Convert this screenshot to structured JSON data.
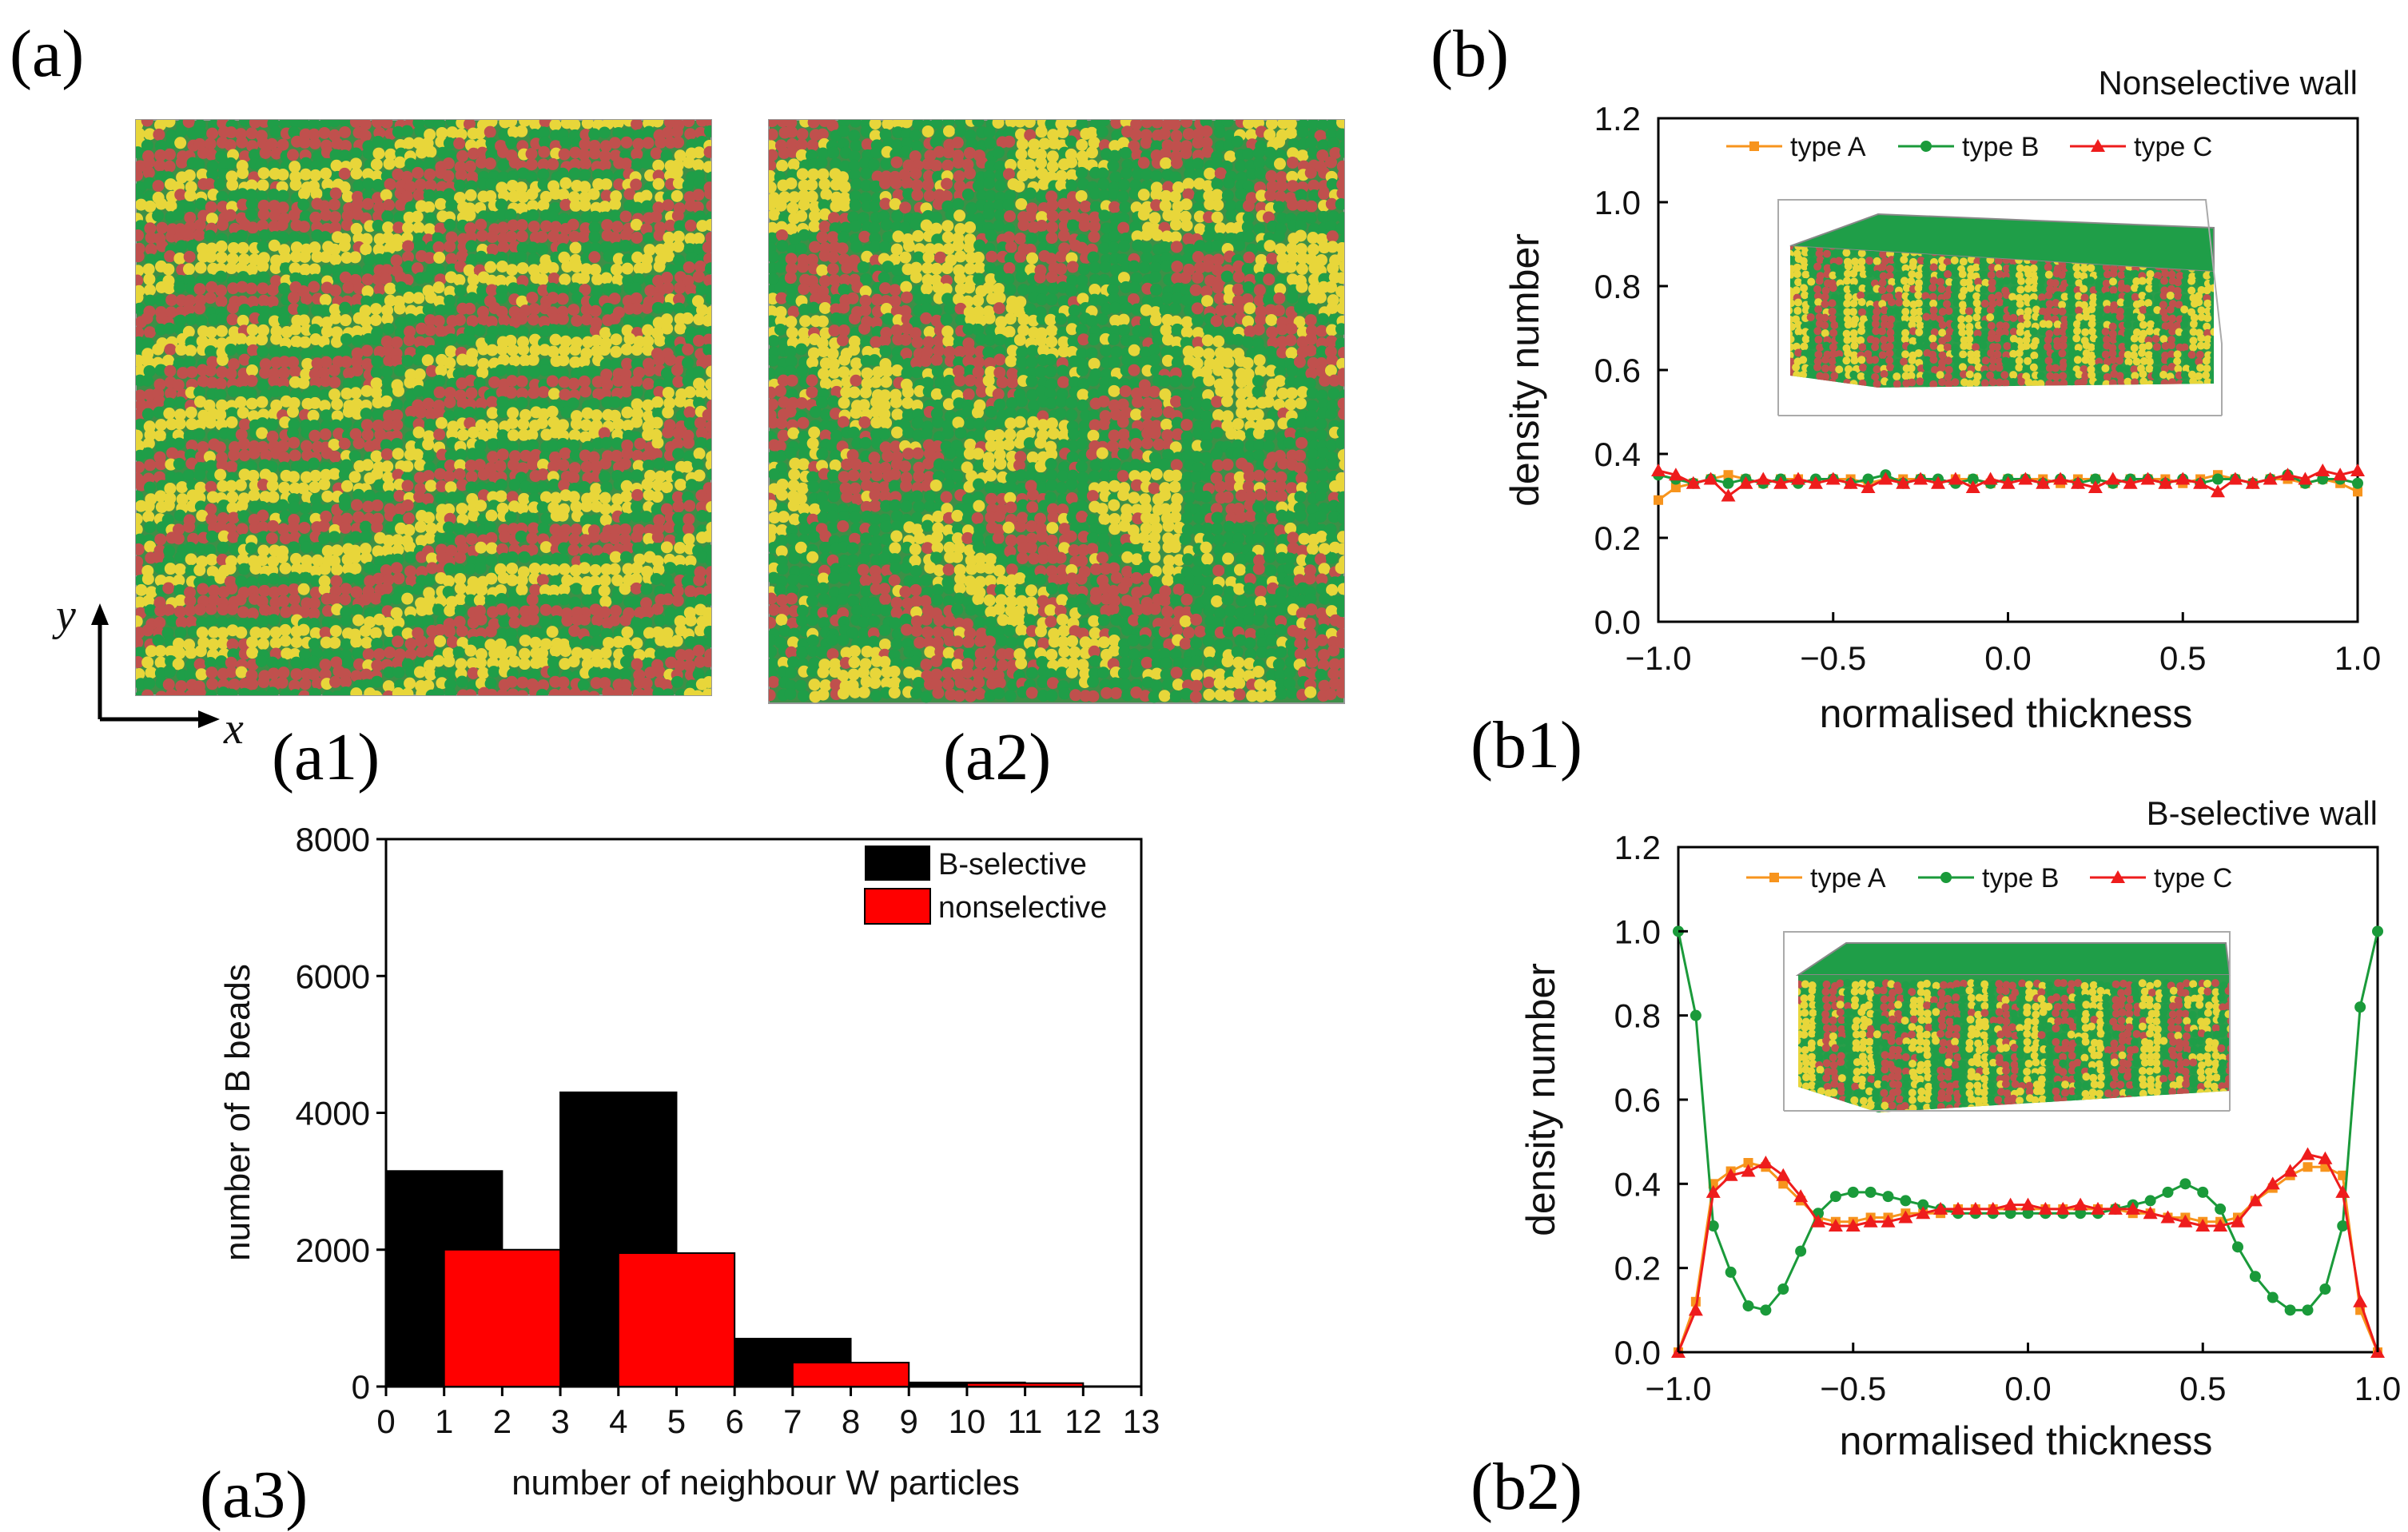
{
  "panel_labels": {
    "a": "(a)",
    "a1": "(a1)",
    "a2": "(a2)",
    "a3": "(a3)",
    "b": "(b)",
    "b1": "(b1)",
    "b2": "(b2)"
  },
  "axes_2d": {
    "y": "y",
    "x": "x"
  },
  "colors": {
    "typeA": "#f7941d",
    "typeB": "#1a9a3a",
    "typeC": "#ee1c1c",
    "bead_yellow": "#e8d63a",
    "bead_green": "#1f9e48",
    "bead_red": "#c0504d",
    "bar_bselective": "#000000",
    "bar_nonselective": "#ff0000"
  },
  "chart_data": [
    {
      "id": "a3",
      "type": "bar",
      "title": "",
      "xlabel": "number of neighbour W particles",
      "ylabel": "number of B beads",
      "xlim": [
        0,
        13
      ],
      "ylim": [
        0,
        8000
      ],
      "xticks": [
        "0",
        "1",
        "2",
        "3",
        "4",
        "5",
        "6",
        "7",
        "8",
        "9",
        "10",
        "11",
        "12",
        "13"
      ],
      "yticks": [
        "0",
        "2000",
        "4000",
        "6000",
        "8000"
      ],
      "legend_position": "top-right",
      "series": [
        {
          "name": "B-selective",
          "x": [
            1,
            4,
            7,
            10
          ],
          "values": [
            3150,
            4300,
            700,
            60
          ]
        },
        {
          "name": "nonselective",
          "x": [
            2,
            5,
            8,
            11
          ],
          "values": [
            2000,
            1950,
            350,
            50
          ]
        }
      ]
    },
    {
      "id": "b1",
      "type": "line",
      "title": "Nonselective wall",
      "xlabel": "normalised thickness",
      "ylabel": "density number",
      "xlim": [
        -1.0,
        1.0
      ],
      "ylim": [
        0.0,
        1.2
      ],
      "xticks": [
        "−1.0",
        "−0.5",
        "0.0",
        "0.5",
        "1.0"
      ],
      "yticks": [
        "0.0",
        "0.2",
        "0.4",
        "0.6",
        "0.8",
        "1.0",
        "1.2"
      ],
      "legend_position": "top",
      "series": [
        {
          "name": "type A",
          "x": [
            -1.0,
            -0.95,
            -0.9,
            -0.85,
            -0.8,
            -0.75,
            -0.7,
            -0.65,
            -0.6,
            -0.55,
            -0.5,
            -0.45,
            -0.4,
            -0.35,
            -0.3,
            -0.25,
            -0.2,
            -0.15,
            -0.1,
            -0.05,
            0.0,
            0.05,
            0.1,
            0.15,
            0.2,
            0.25,
            0.3,
            0.35,
            0.4,
            0.45,
            0.5,
            0.55,
            0.6,
            0.65,
            0.7,
            0.75,
            0.8,
            0.85,
            0.9,
            0.95,
            1.0
          ],
          "values": [
            0.29,
            0.32,
            0.33,
            0.34,
            0.35,
            0.34,
            0.33,
            0.34,
            0.34,
            0.33,
            0.34,
            0.34,
            0.33,
            0.34,
            0.34,
            0.34,
            0.33,
            0.34,
            0.34,
            0.33,
            0.34,
            0.34,
            0.34,
            0.33,
            0.34,
            0.34,
            0.33,
            0.34,
            0.34,
            0.34,
            0.33,
            0.34,
            0.35,
            0.34,
            0.33,
            0.34,
            0.34,
            0.33,
            0.34,
            0.33,
            0.31
          ]
        },
        {
          "name": "type B",
          "x": [
            -1.0,
            -0.95,
            -0.9,
            -0.85,
            -0.8,
            -0.75,
            -0.7,
            -0.65,
            -0.6,
            -0.55,
            -0.5,
            -0.45,
            -0.4,
            -0.35,
            -0.3,
            -0.25,
            -0.2,
            -0.15,
            -0.1,
            -0.05,
            0.0,
            0.05,
            0.1,
            0.15,
            0.2,
            0.25,
            0.3,
            0.35,
            0.4,
            0.45,
            0.5,
            0.55,
            0.6,
            0.65,
            0.7,
            0.75,
            0.8,
            0.85,
            0.9,
            0.95,
            1.0
          ],
          "values": [
            0.35,
            0.34,
            0.33,
            0.34,
            0.33,
            0.34,
            0.33,
            0.34,
            0.33,
            0.34,
            0.34,
            0.33,
            0.34,
            0.35,
            0.33,
            0.34,
            0.34,
            0.33,
            0.34,
            0.33,
            0.34,
            0.34,
            0.33,
            0.34,
            0.33,
            0.34,
            0.33,
            0.34,
            0.34,
            0.33,
            0.34,
            0.33,
            0.34,
            0.34,
            0.33,
            0.34,
            0.35,
            0.33,
            0.34,
            0.34,
            0.33
          ]
        },
        {
          "name": "type C",
          "x": [
            -1.0,
            -0.95,
            -0.9,
            -0.85,
            -0.8,
            -0.75,
            -0.7,
            -0.65,
            -0.6,
            -0.55,
            -0.5,
            -0.45,
            -0.4,
            -0.35,
            -0.3,
            -0.25,
            -0.2,
            -0.15,
            -0.1,
            -0.05,
            0.0,
            0.05,
            0.1,
            0.15,
            0.2,
            0.25,
            0.3,
            0.35,
            0.4,
            0.45,
            0.5,
            0.55,
            0.6,
            0.65,
            0.7,
            0.75,
            0.8,
            0.85,
            0.9,
            0.95,
            1.0
          ],
          "values": [
            0.36,
            0.35,
            0.33,
            0.34,
            0.3,
            0.33,
            0.34,
            0.33,
            0.34,
            0.33,
            0.34,
            0.33,
            0.32,
            0.34,
            0.33,
            0.34,
            0.33,
            0.34,
            0.32,
            0.34,
            0.33,
            0.34,
            0.33,
            0.34,
            0.33,
            0.32,
            0.34,
            0.33,
            0.34,
            0.33,
            0.34,
            0.33,
            0.31,
            0.34,
            0.33,
            0.34,
            0.35,
            0.34,
            0.36,
            0.35,
            0.36
          ]
        }
      ],
      "inset": "3D simulation box snapshot (lamellae)"
    },
    {
      "id": "b2",
      "type": "line",
      "title": "B-selective wall",
      "xlabel": "normalised thickness",
      "ylabel": "density number",
      "xlim": [
        -1.0,
        1.0
      ],
      "ylim": [
        0.0,
        1.2
      ],
      "xticks": [
        "−1.0",
        "−0.5",
        "0.0",
        "0.5",
        "1.0"
      ],
      "yticks": [
        "0.0",
        "0.2",
        "0.4",
        "0.6",
        "0.8",
        "1.0",
        "1.2"
      ],
      "legend_position": "top",
      "series": [
        {
          "name": "type A",
          "x": [
            -1.0,
            -0.95,
            -0.9,
            -0.85,
            -0.8,
            -0.75,
            -0.7,
            -0.65,
            -0.6,
            -0.55,
            -0.5,
            -0.45,
            -0.4,
            -0.35,
            -0.3,
            -0.25,
            -0.2,
            -0.15,
            -0.1,
            -0.05,
            0.0,
            0.05,
            0.1,
            0.15,
            0.2,
            0.25,
            0.3,
            0.35,
            0.4,
            0.45,
            0.5,
            0.55,
            0.6,
            0.65,
            0.7,
            0.75,
            0.8,
            0.85,
            0.9,
            0.95,
            1.0
          ],
          "values": [
            0.0,
            0.12,
            0.4,
            0.43,
            0.45,
            0.44,
            0.4,
            0.36,
            0.32,
            0.31,
            0.31,
            0.32,
            0.32,
            0.33,
            0.33,
            0.33,
            0.34,
            0.34,
            0.34,
            0.34,
            0.34,
            0.34,
            0.34,
            0.34,
            0.34,
            0.34,
            0.33,
            0.33,
            0.32,
            0.32,
            0.31,
            0.31,
            0.32,
            0.36,
            0.39,
            0.42,
            0.44,
            0.44,
            0.42,
            0.1,
            0.0
          ]
        },
        {
          "name": "type B",
          "x": [
            -1.0,
            -0.95,
            -0.9,
            -0.85,
            -0.8,
            -0.75,
            -0.7,
            -0.65,
            -0.6,
            -0.55,
            -0.5,
            -0.45,
            -0.4,
            -0.35,
            -0.3,
            -0.25,
            -0.2,
            -0.15,
            -0.1,
            -0.05,
            0.0,
            0.05,
            0.1,
            0.15,
            0.2,
            0.25,
            0.3,
            0.35,
            0.4,
            0.45,
            0.5,
            0.55,
            0.6,
            0.65,
            0.7,
            0.75,
            0.8,
            0.85,
            0.9,
            0.95,
            1.0
          ],
          "values": [
            1.0,
            0.8,
            0.3,
            0.19,
            0.11,
            0.1,
            0.15,
            0.24,
            0.33,
            0.37,
            0.38,
            0.38,
            0.37,
            0.36,
            0.35,
            0.34,
            0.33,
            0.33,
            0.33,
            0.33,
            0.33,
            0.33,
            0.33,
            0.33,
            0.33,
            0.34,
            0.35,
            0.36,
            0.38,
            0.4,
            0.38,
            0.34,
            0.25,
            0.18,
            0.13,
            0.1,
            0.1,
            0.15,
            0.3,
            0.82,
            1.0
          ]
        },
        {
          "name": "type C",
          "x": [
            -1.0,
            -0.95,
            -0.9,
            -0.85,
            -0.8,
            -0.75,
            -0.7,
            -0.65,
            -0.6,
            -0.55,
            -0.5,
            -0.45,
            -0.4,
            -0.35,
            -0.3,
            -0.25,
            -0.2,
            -0.15,
            -0.1,
            -0.05,
            0.0,
            0.05,
            0.1,
            0.15,
            0.2,
            0.25,
            0.3,
            0.35,
            0.4,
            0.45,
            0.5,
            0.55,
            0.6,
            0.65,
            0.7,
            0.75,
            0.8,
            0.85,
            0.9,
            0.95,
            1.0
          ],
          "values": [
            0.0,
            0.1,
            0.38,
            0.42,
            0.43,
            0.45,
            0.42,
            0.37,
            0.31,
            0.3,
            0.3,
            0.31,
            0.31,
            0.32,
            0.33,
            0.34,
            0.34,
            0.34,
            0.34,
            0.35,
            0.35,
            0.34,
            0.34,
            0.35,
            0.34,
            0.34,
            0.34,
            0.33,
            0.32,
            0.31,
            0.3,
            0.3,
            0.31,
            0.36,
            0.4,
            0.43,
            0.47,
            0.46,
            0.38,
            0.12,
            0.0
          ]
        }
      ],
      "inset": "3D simulation box snapshot (B-rich walls)"
    }
  ]
}
